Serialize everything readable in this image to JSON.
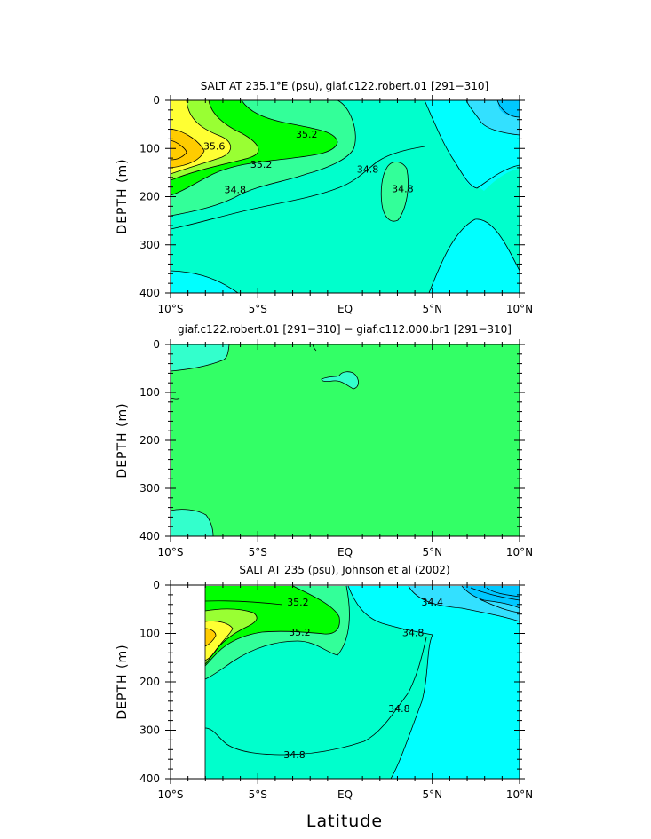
{
  "chart_data": [
    {
      "type": "contour",
      "title": "SALT AT 235.1°E (psu), giaf.c122.robert.01 [291−310]",
      "xlabel": "",
      "ylabel": "DEPTH (m)",
      "xlim": [
        -10,
        10
      ],
      "ylim": [
        400,
        0
      ],
      "x_tick_labels": [
        "10°S",
        "5°S",
        "EQ",
        "5°N",
        "10°N"
      ],
      "y_tick_labels": [
        "0",
        "100",
        "200",
        "300",
        "400"
      ],
      "contour_labels": [
        {
          "text": "35.6",
          "lat": -7.5,
          "depth": 95
        },
        {
          "text": "35.2",
          "lat": -2.2,
          "depth": 70
        },
        {
          "text": "35.2",
          "lat": -4.8,
          "depth": 133
        },
        {
          "text": "34.8",
          "lat": 1.3,
          "depth": 143
        },
        {
          "text": "34.8",
          "lat": -6.3,
          "depth": 185
        },
        {
          "text": "34.8",
          "lat": 3.3,
          "depth": 183
        }
      ],
      "levels": [
        34.4,
        34.6,
        34.8,
        35.0,
        35.2,
        35.4,
        35.6,
        35.8
      ],
      "colors": {
        "fill_34_6": "#00ffff",
        "fill_34_4": "#33e0ff",
        "fill_34_8": "#00ffcc",
        "fill_35_0": "#33ff99",
        "fill_35_2": "#00ff00",
        "fill_35_4": "#99ff33",
        "fill_35_6": "#ffff33",
        "fill_35_8": "#ffcc00",
        "fill_low": "#00c8ff"
      }
    },
    {
      "type": "contour",
      "title": "giaf.c122.robert.01 [291−310] − giaf.c112.000.br1 [291−310]",
      "xlabel": "",
      "ylabel": "DEPTH (m)",
      "xlim": [
        -10,
        10
      ],
      "ylim": [
        400,
        0
      ],
      "x_tick_labels": [
        "10°S",
        "5°S",
        "EQ",
        "5°N",
        "10°N"
      ],
      "y_tick_labels": [
        "0",
        "100",
        "200",
        "300",
        "400"
      ],
      "colors": {
        "fill_main": "#33ff66",
        "fill_neg": "#33ffcc"
      }
    },
    {
      "type": "contour",
      "title": "SALT AT 235 (psu), Johnson et al (2002)",
      "xlabel": "Latitude",
      "ylabel": "DEPTH (m)",
      "xlim": [
        -10,
        10
      ],
      "ylim": [
        400,
        0
      ],
      "x_tick_labels": [
        "10°S",
        "5°S",
        "EQ",
        "5°N",
        "10°N"
      ],
      "y_tick_labels": [
        "0",
        "100",
        "200",
        "300",
        "400"
      ],
      "data_start_lat": -8,
      "contour_labels": [
        {
          "text": "35.2",
          "lat": -2.7,
          "depth": 35
        },
        {
          "text": "35.2",
          "lat": -2.6,
          "depth": 97
        },
        {
          "text": "34.4",
          "lat": 5.0,
          "depth": 35
        },
        {
          "text": "34.8",
          "lat": 3.9,
          "depth": 98
        },
        {
          "text": "34.8",
          "lat": 3.1,
          "depth": 255
        },
        {
          "text": "34.8",
          "lat": -2.9,
          "depth": 350
        }
      ],
      "colors": {
        "fill_34_6": "#00ffff",
        "fill_34_4": "#33e0ff",
        "fill_34_8": "#00ffcc",
        "fill_35_0": "#33ff99",
        "fill_35_2": "#00ff00",
        "fill_35_4": "#99ff33",
        "fill_35_6": "#ffff33",
        "fill_35_8": "#ffcc00",
        "fill_low": "#00c8ff"
      }
    }
  ]
}
